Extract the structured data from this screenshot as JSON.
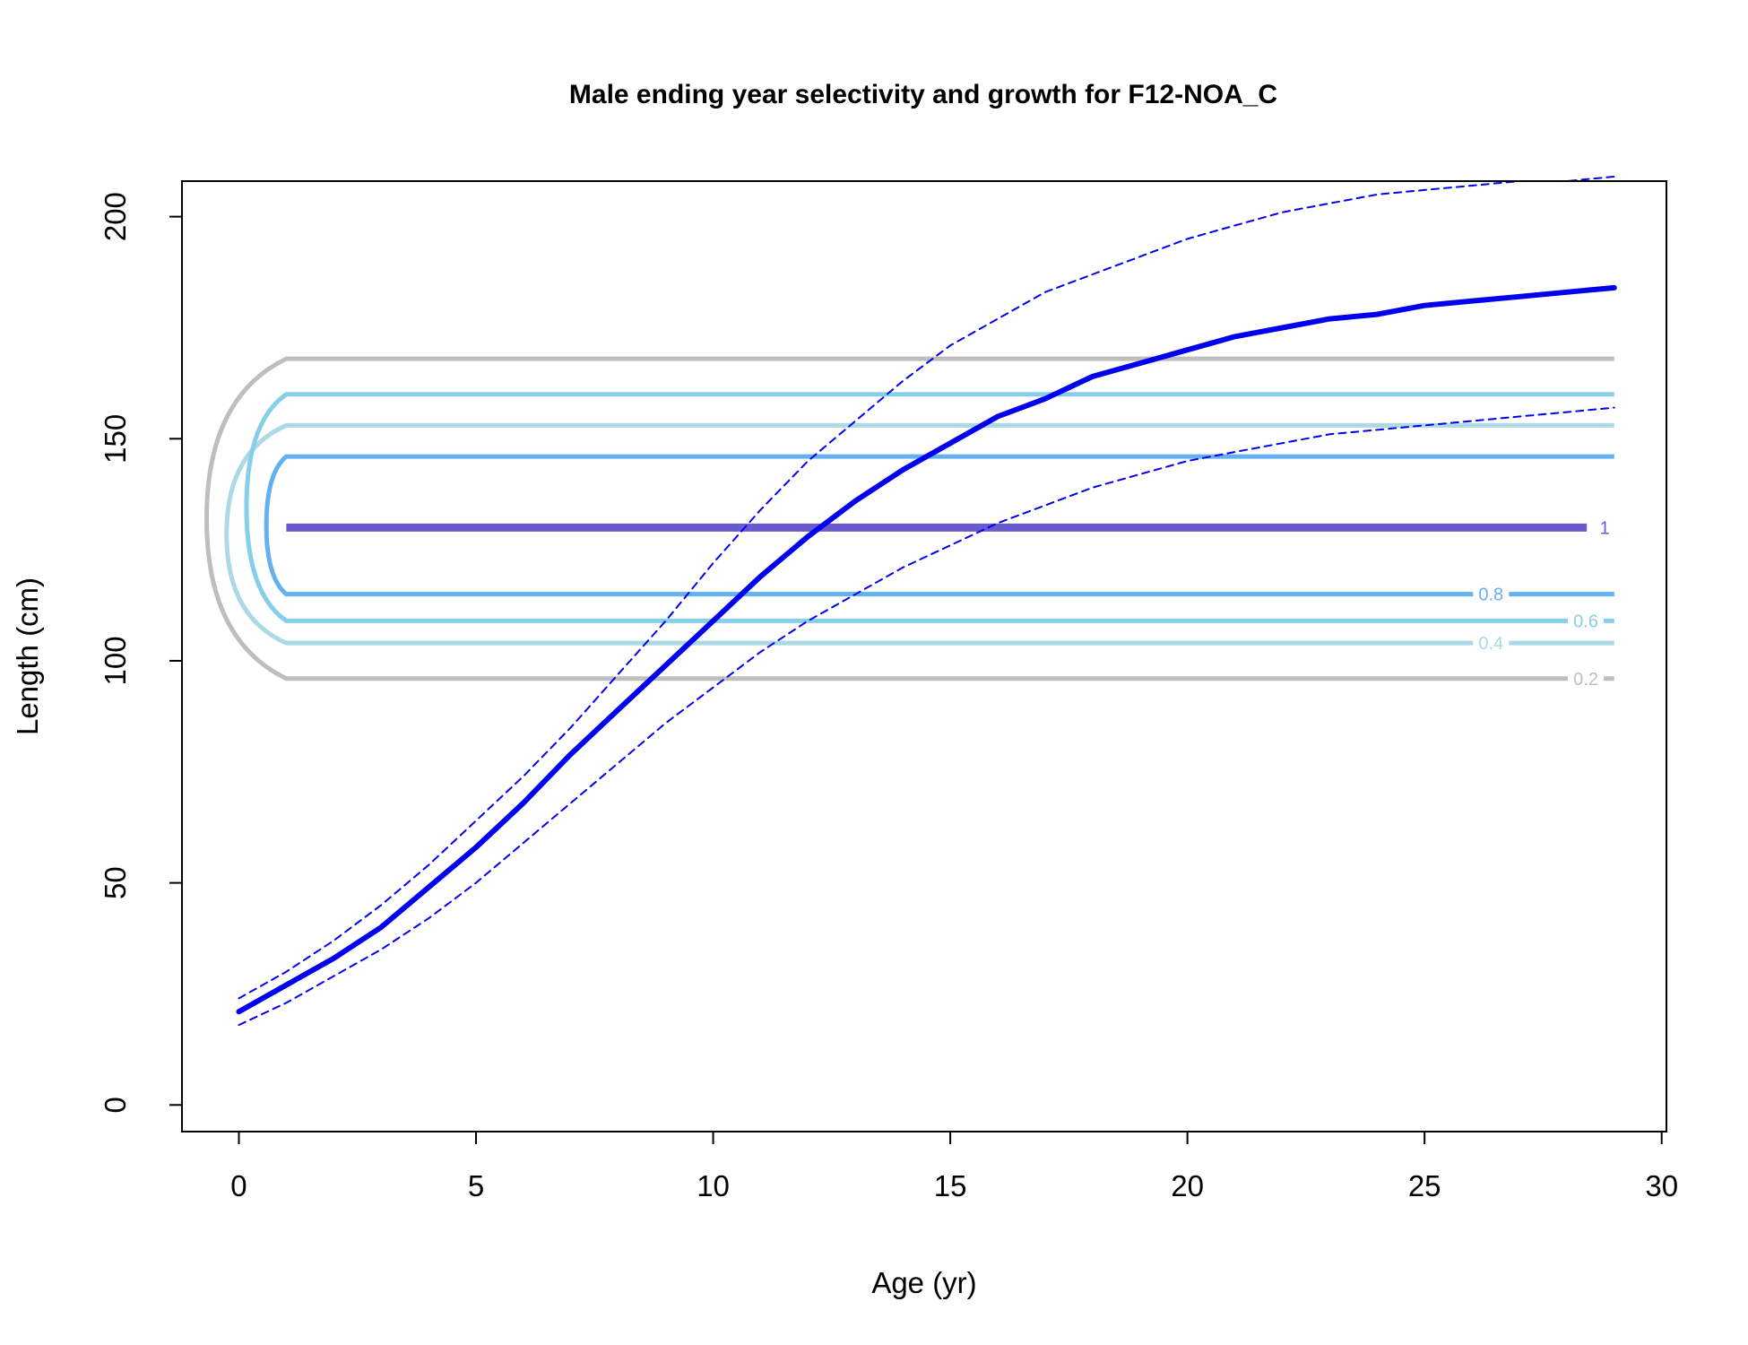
{
  "chart_data": {
    "type": "line",
    "title": "Male ending year selectivity and growth for F12-NOA_C",
    "xlabel": "Age (yr)",
    "ylabel": "Length (cm)",
    "xlim": [
      -1.2,
      30.1
    ],
    "ylim": [
      -6,
      208
    ],
    "xticks": [
      0,
      5,
      10,
      15,
      20,
      25,
      30
    ],
    "yticks": [
      0,
      50,
      100,
      150,
      200
    ],
    "grid": false,
    "colors": {
      "growth": "#0000ee",
      "contour_0.2": "#bebebe",
      "contour_0.4": "#add8e6",
      "contour_0.6": "#87ceeb",
      "contour_0.8": "#63b1f1",
      "contour_1": "#6a5acd"
    },
    "series": [
      {
        "role": "mean",
        "style": "solid",
        "x": [
          0,
          1,
          2,
          3,
          4,
          5,
          6,
          7,
          8,
          9,
          10,
          11,
          12,
          13,
          14,
          15,
          16,
          17,
          18,
          19,
          20,
          21,
          22,
          23,
          24,
          25,
          26,
          27,
          28,
          29
        ],
        "values": [
          21,
          27,
          33,
          40,
          49,
          58,
          68,
          79,
          89,
          99,
          109,
          119,
          128,
          136,
          143,
          149,
          155,
          159,
          164,
          167,
          170,
          173,
          175,
          177,
          178,
          180,
          181,
          182,
          183,
          184
        ]
      },
      {
        "role": "upper",
        "style": "dashed",
        "x": [
          0,
          1,
          2,
          3,
          4,
          5,
          6,
          7,
          8,
          9,
          10,
          11,
          12,
          13,
          14,
          15,
          16,
          17,
          18,
          19,
          20,
          21,
          22,
          23,
          24,
          25,
          26,
          27,
          28,
          29
        ],
        "values": [
          24,
          30,
          37,
          45,
          54,
          64,
          74,
          85,
          97,
          109,
          122,
          134,
          145,
          154,
          163,
          171,
          177,
          183,
          187,
          191,
          195,
          198,
          201,
          203,
          205,
          206,
          207,
          208,
          208,
          209
        ]
      },
      {
        "role": "lower",
        "style": "dashed",
        "x": [
          0,
          1,
          2,
          3,
          4,
          5,
          6,
          7,
          8,
          9,
          10,
          11,
          12,
          13,
          14,
          15,
          16,
          17,
          18,
          19,
          20,
          21,
          22,
          23,
          24,
          25,
          26,
          27,
          28,
          29
        ],
        "values": [
          18,
          23,
          29,
          35,
          42,
          50,
          59,
          68,
          77,
          86,
          94,
          102,
          109,
          115,
          121,
          126,
          131,
          135,
          139,
          142,
          145,
          147,
          149,
          151,
          152,
          153,
          154,
          155,
          156,
          157
        ]
      }
    ],
    "contours": [
      {
        "level": 0.2,
        "label": "0.2",
        "low": 96,
        "high": 168,
        "label_side": "low",
        "label_age": 28.4
      },
      {
        "level": 0.4,
        "label": "0.4",
        "low": 104,
        "high": 153,
        "label_side": "low",
        "label_age": 26.4
      },
      {
        "level": 0.6,
        "label": "0.6",
        "low": 109,
        "high": 160,
        "label_side": "low",
        "label_age": 28.4
      },
      {
        "level": 0.8,
        "label": "0.8",
        "low": 115,
        "high": 146,
        "label_side": "low",
        "label_age": 26.4
      },
      {
        "level": 1,
        "label": "1",
        "low": 130,
        "high": 130,
        "label_side": "low",
        "label_age": 28.8
      }
    ],
    "contour_age_range": [
      1,
      29
    ]
  }
}
